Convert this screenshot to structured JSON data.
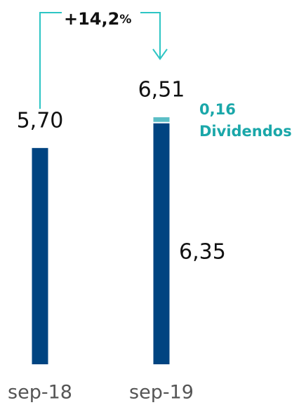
{
  "chart_data": {
    "type": "stacked_bar",
    "categories": [
      "sep-18",
      "sep-19"
    ],
    "series": [
      {
        "color": "#004481",
        "values": [
          5.7,
          6.35
        ],
        "value_labels": [
          null,
          "6,35"
        ]
      },
      {
        "name": "Dividendos",
        "color": "#5bbec6",
        "values": [
          null,
          0.16
        ],
        "value_labels": [
          null,
          "0,16"
        ]
      }
    ],
    "totals": {
      "values": [
        5.7,
        6.51
      ],
      "value_labels": [
        "5,70",
        "6,51"
      ]
    },
    "annotation": {
      "text": "+14,2",
      "unit": "%",
      "color": "#2dc5c4"
    },
    "ylim": [
      0,
      9.6
    ]
  }
}
